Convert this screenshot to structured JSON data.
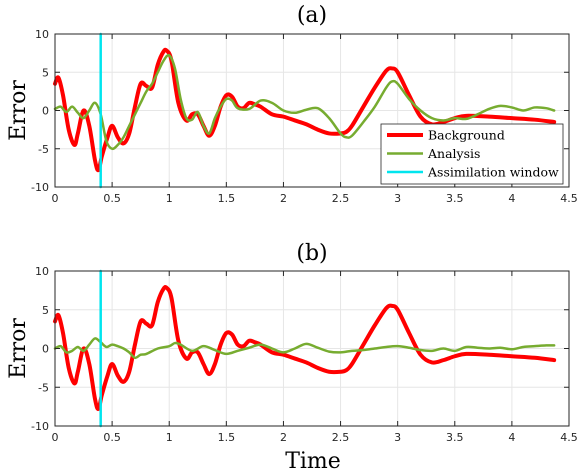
{
  "colors": {
    "background": "#ff0000",
    "analysis": "#77ac30",
    "window": "#00e5ee"
  },
  "figure": {
    "xlabel": "Time"
  },
  "chart_data": [
    {
      "type": "line",
      "title": "(a)",
      "xlabel": "",
      "ylabel": "Error",
      "xlim": [
        0,
        4.5
      ],
      "ylim": [
        -10,
        10
      ],
      "xticks": [
        0,
        0.5,
        1,
        1.5,
        2,
        2.5,
        3,
        3.5,
        4,
        4.5
      ],
      "yticks": [
        -10,
        -5,
        0,
        5,
        10
      ],
      "grid": true,
      "legend_position": "lower-right",
      "series": [
        {
          "name": "Background",
          "color": "#ff0000",
          "x": [
            0,
            0.03,
            0.07,
            0.12,
            0.17,
            0.2,
            0.25,
            0.3,
            0.35,
            0.38,
            0.41,
            0.46,
            0.5,
            0.55,
            0.6,
            0.65,
            0.7,
            0.75,
            0.8,
            0.85,
            0.9,
            0.95,
            0.98,
            1.02,
            1.08,
            1.15,
            1.2,
            1.25,
            1.3,
            1.35,
            1.4,
            1.45,
            1.5,
            1.55,
            1.6,
            1.65,
            1.7,
            1.75,
            1.8,
            1.9,
            2.0,
            2.1,
            2.2,
            2.3,
            2.4,
            2.5,
            2.55,
            2.6,
            2.7,
            2.8,
            2.9,
            2.95,
            3.0,
            3.1,
            3.2,
            3.3,
            3.4,
            3.5,
            3.6,
            3.8,
            4.0,
            4.2,
            4.37
          ],
          "y": [
            3.5,
            4.3,
            2.0,
            -2.5,
            -4.5,
            -3.0,
            0.0,
            -2.0,
            -6.5,
            -7.8,
            -6.0,
            -3.5,
            -2.0,
            -3.5,
            -4.3,
            -3.0,
            0.5,
            3.5,
            3.2,
            3.0,
            6.0,
            7.7,
            7.8,
            6.5,
            1.0,
            -1.3,
            -0.5,
            -0.5,
            -2.0,
            -3.3,
            -2.0,
            0.5,
            2.0,
            1.8,
            0.5,
            0.3,
            1.0,
            0.8,
            0.5,
            -0.5,
            -0.8,
            -1.3,
            -1.8,
            -2.5,
            -3.0,
            -3.0,
            -2.8,
            -2.0,
            0.5,
            3.0,
            5.2,
            5.5,
            5.0,
            2.0,
            -0.8,
            -1.8,
            -1.5,
            -1.0,
            -0.7,
            -0.8,
            -1.0,
            -1.2,
            -1.5
          ]
        },
        {
          "name": "Analysis",
          "color": "#77ac30",
          "x": [
            0,
            0.05,
            0.1,
            0.15,
            0.2,
            0.25,
            0.3,
            0.35,
            0.4,
            0.45,
            0.5,
            0.55,
            0.6,
            0.65,
            0.7,
            0.75,
            0.8,
            0.85,
            0.9,
            0.95,
            1.0,
            1.05,
            1.1,
            1.15,
            1.2,
            1.25,
            1.3,
            1.35,
            1.4,
            1.45,
            1.5,
            1.55,
            1.6,
            1.7,
            1.8,
            1.9,
            2.0,
            2.1,
            2.2,
            2.3,
            2.4,
            2.5,
            2.55,
            2.6,
            2.7,
            2.8,
            2.9,
            2.95,
            3.0,
            3.1,
            3.2,
            3.3,
            3.4,
            3.5,
            3.6,
            3.7,
            3.8,
            3.9,
            4.0,
            4.1,
            4.2,
            4.3,
            4.37
          ],
          "y": [
            0.2,
            0.5,
            -0.2,
            0.5,
            -0.3,
            -1.0,
            0.0,
            1.0,
            -0.5,
            -4.0,
            -5.0,
            -4.5,
            -3.5,
            -2.0,
            -0.5,
            1.0,
            2.5,
            3.5,
            5.0,
            6.5,
            7.2,
            5.5,
            1.5,
            -1.0,
            -1.2,
            -0.2,
            -2.0,
            -3.0,
            -1.0,
            0.5,
            1.5,
            1.3,
            0.3,
            0.2,
            1.3,
            1.0,
            0.0,
            -0.3,
            0.1,
            0.3,
            -1.0,
            -3.0,
            -3.5,
            -3.3,
            -1.5,
            0.5,
            3.0,
            3.8,
            3.5,
            1.5,
            0.0,
            -1.0,
            -1.3,
            -1.0,
            -1.1,
            -0.5,
            0.2,
            0.6,
            0.4,
            0.0,
            0.4,
            0.3,
            0.0
          ]
        },
        {
          "name": "Assimilation window",
          "color": "#00e5ee",
          "x": [
            0.4,
            0.4
          ],
          "y": [
            -10,
            10
          ]
        }
      ]
    },
    {
      "type": "line",
      "title": "(b)",
      "xlabel": "Time",
      "ylabel": "Error",
      "xlim": [
        0,
        4.5
      ],
      "ylim": [
        -10,
        10
      ],
      "xticks": [
        0,
        0.5,
        1,
        1.5,
        2,
        2.5,
        3,
        3.5,
        4,
        4.5
      ],
      "yticks": [
        -10,
        -5,
        0,
        5,
        10
      ],
      "grid": true,
      "series": [
        {
          "name": "Background",
          "color": "#ff0000",
          "x": [
            0,
            0.03,
            0.07,
            0.12,
            0.17,
            0.2,
            0.25,
            0.3,
            0.35,
            0.38,
            0.41,
            0.46,
            0.5,
            0.55,
            0.6,
            0.65,
            0.7,
            0.75,
            0.8,
            0.85,
            0.9,
            0.95,
            0.98,
            1.02,
            1.08,
            1.15,
            1.2,
            1.25,
            1.3,
            1.35,
            1.4,
            1.45,
            1.5,
            1.55,
            1.6,
            1.65,
            1.7,
            1.75,
            1.8,
            1.9,
            2.0,
            2.1,
            2.2,
            2.3,
            2.4,
            2.5,
            2.55,
            2.6,
            2.7,
            2.8,
            2.9,
            2.95,
            3.0,
            3.1,
            3.2,
            3.3,
            3.4,
            3.5,
            3.6,
            3.8,
            4.0,
            4.2,
            4.37
          ],
          "y": [
            3.5,
            4.3,
            2.0,
            -2.5,
            -4.5,
            -3.0,
            0.0,
            -2.0,
            -6.5,
            -7.8,
            -6.0,
            -3.5,
            -2.0,
            -3.5,
            -4.3,
            -3.0,
            0.5,
            3.5,
            3.2,
            3.0,
            6.0,
            7.7,
            7.8,
            6.5,
            1.0,
            -1.3,
            -0.5,
            -0.5,
            -2.0,
            -3.3,
            -2.0,
            0.5,
            2.0,
            1.8,
            0.5,
            0.3,
            1.0,
            0.8,
            0.5,
            -0.5,
            -0.8,
            -1.3,
            -1.8,
            -2.5,
            -3.0,
            -3.0,
            -2.8,
            -2.0,
            0.5,
            3.0,
            5.2,
            5.5,
            5.0,
            2.0,
            -0.8,
            -1.8,
            -1.5,
            -1.0,
            -0.7,
            -0.8,
            -1.0,
            -1.2,
            -1.5
          ]
        },
        {
          "name": "Analysis",
          "color": "#77ac30",
          "x": [
            0,
            0.05,
            0.1,
            0.15,
            0.2,
            0.25,
            0.3,
            0.35,
            0.4,
            0.45,
            0.5,
            0.55,
            0.6,
            0.65,
            0.7,
            0.75,
            0.8,
            0.9,
            1.0,
            1.05,
            1.1,
            1.2,
            1.3,
            1.4,
            1.5,
            1.6,
            1.7,
            1.8,
            1.9,
            2.0,
            2.1,
            2.2,
            2.3,
            2.4,
            2.5,
            2.6,
            2.7,
            2.8,
            2.9,
            3.0,
            3.1,
            3.2,
            3.3,
            3.4,
            3.5,
            3.6,
            3.7,
            3.8,
            3.9,
            4.0,
            4.1,
            4.2,
            4.3,
            4.37
          ],
          "y": [
            0.0,
            0.3,
            -0.5,
            -0.3,
            0.2,
            -0.3,
            0.5,
            1.3,
            0.8,
            0.2,
            0.5,
            0.3,
            0.0,
            -0.5,
            -1.2,
            -0.8,
            -0.7,
            0.0,
            0.3,
            0.7,
            0.5,
            -0.3,
            0.3,
            -0.2,
            -0.7,
            -0.3,
            0.1,
            0.5,
            0.0,
            -0.5,
            0.0,
            0.6,
            0.1,
            -0.4,
            -0.5,
            -0.3,
            -0.2,
            0.0,
            0.2,
            0.3,
            0.1,
            -0.2,
            -0.3,
            0.0,
            -0.3,
            0.2,
            0.1,
            0.0,
            0.1,
            -0.1,
            0.2,
            0.3,
            0.4,
            0.4
          ]
        },
        {
          "name": "Assimilation window",
          "color": "#00e5ee",
          "x": [
            0.4,
            0.4
          ],
          "y": [
            -10,
            10
          ]
        }
      ]
    }
  ]
}
